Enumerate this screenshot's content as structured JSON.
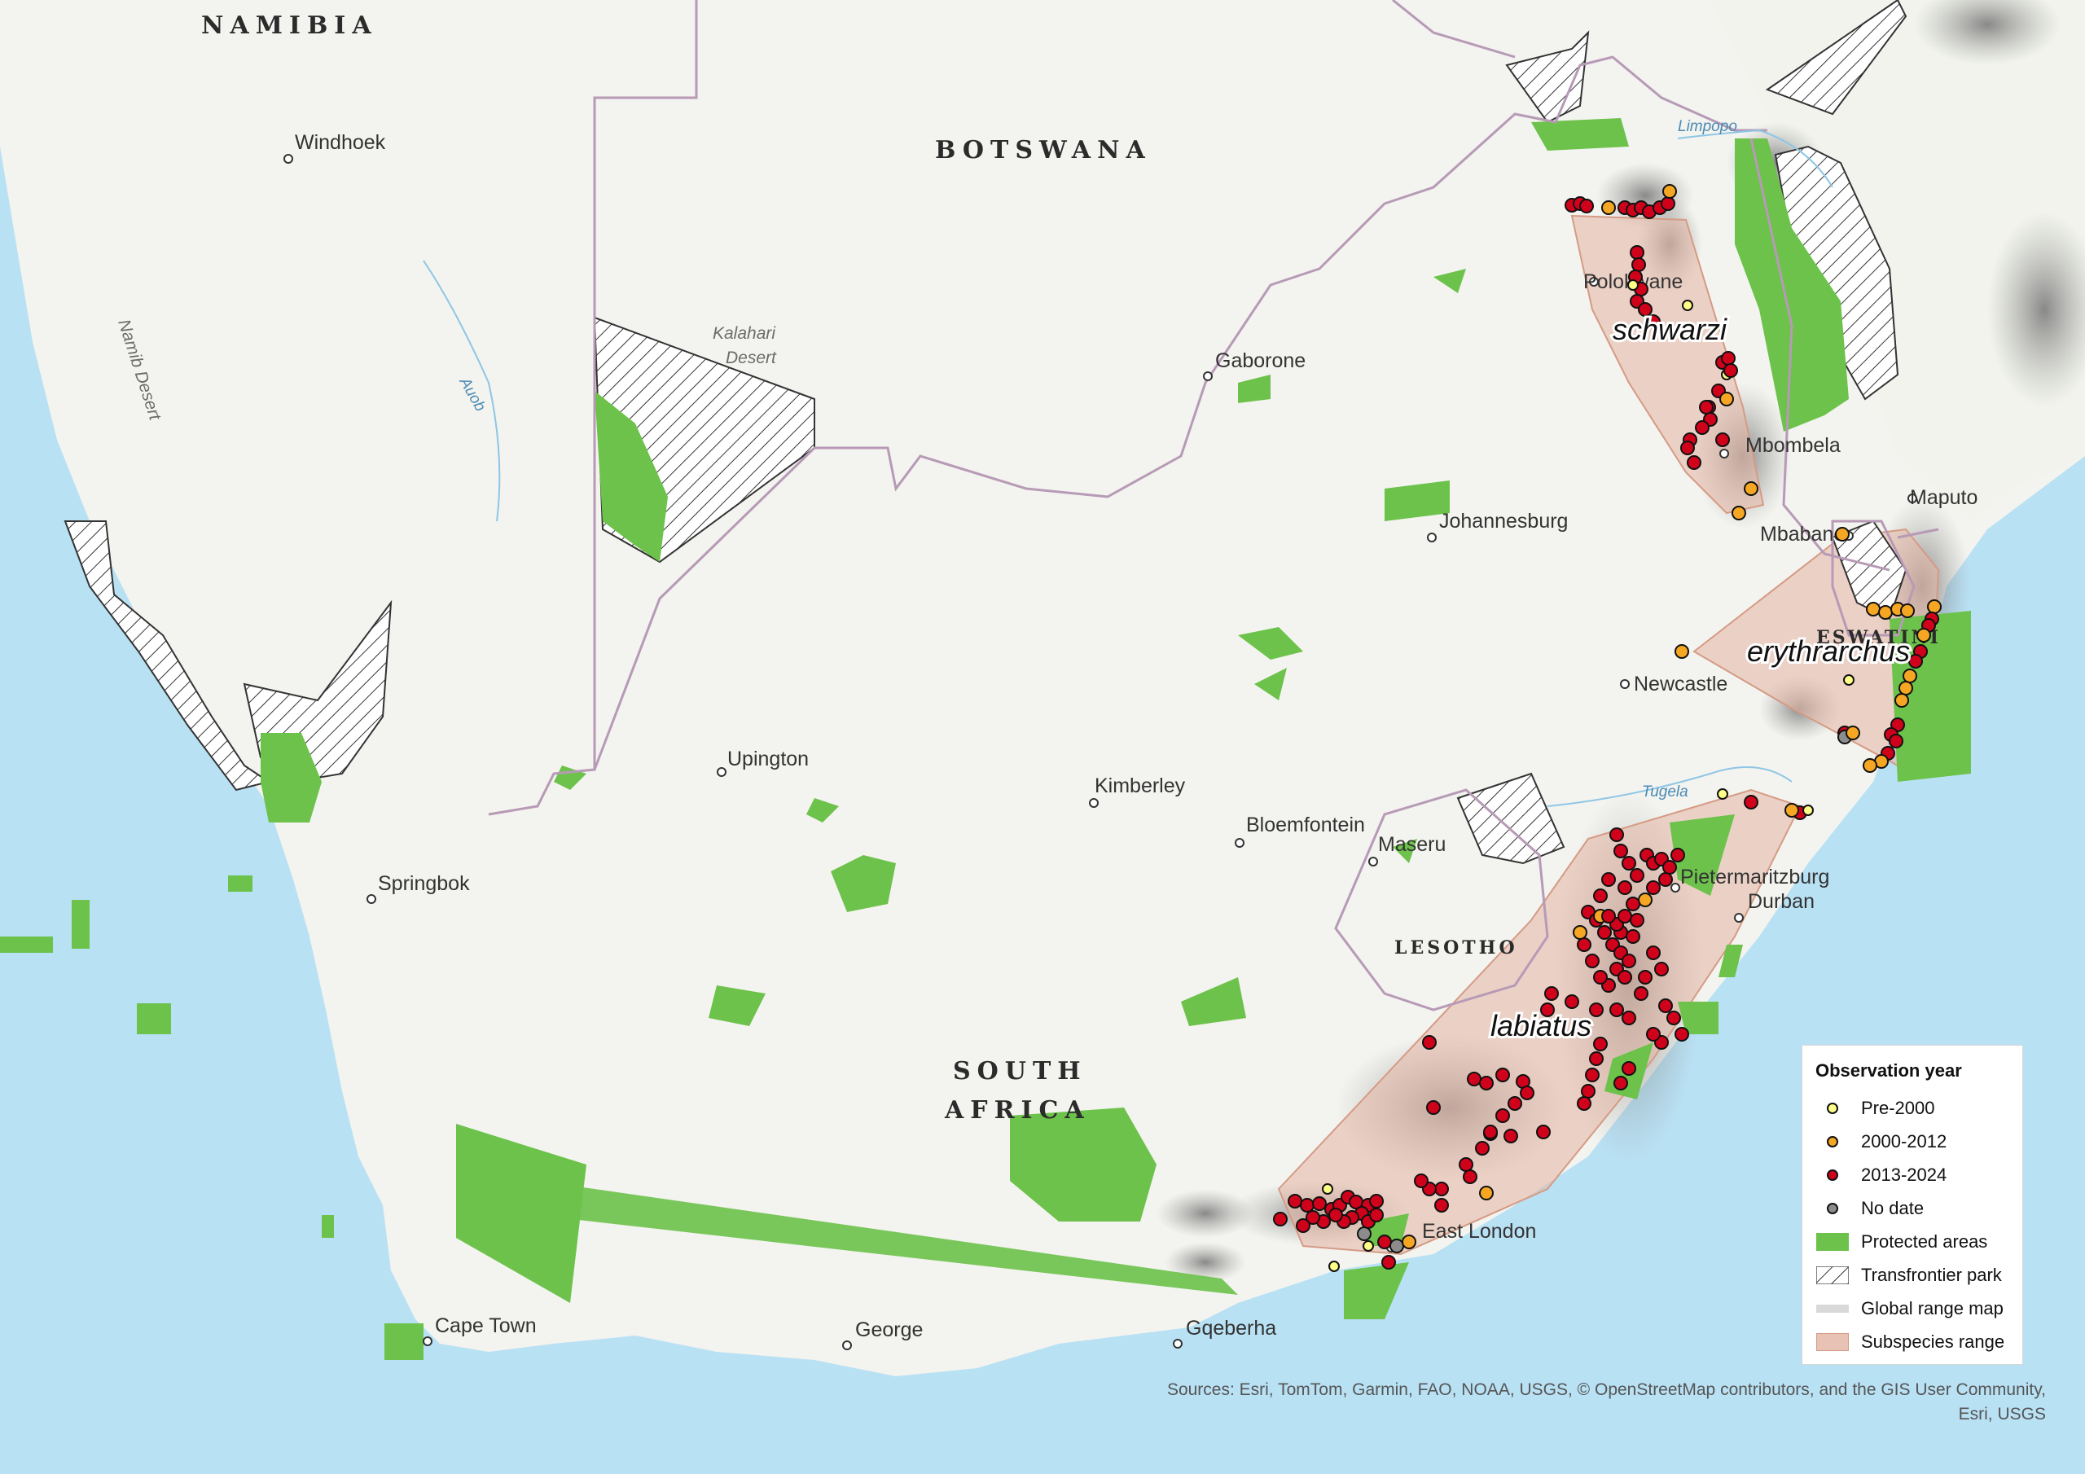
{
  "countries": [
    {
      "id": "namibia",
      "label": "NAMIBIA"
    },
    {
      "id": "botswana",
      "label": "BOTSWANA"
    },
    {
      "id": "south-africa-1",
      "label": "SOUTH"
    },
    {
      "id": "south-africa-2",
      "label": "AFRICA"
    },
    {
      "id": "lesotho",
      "label": "LESOTHO"
    },
    {
      "id": "eswatini",
      "label": "ESWATINI"
    }
  ],
  "cities": [
    {
      "id": "windhoek",
      "label": "Windhoek"
    },
    {
      "id": "gaborone",
      "label": "Gaborone"
    },
    {
      "id": "polokwane",
      "label": "Polokwane"
    },
    {
      "id": "mbombela",
      "label": "Mbombela"
    },
    {
      "id": "maputo",
      "label": "Maputo"
    },
    {
      "id": "mbabane",
      "label": "Mbabane"
    },
    {
      "id": "johannesburg",
      "label": "Johannesburg"
    },
    {
      "id": "newcastle",
      "label": "Newcastle"
    },
    {
      "id": "upington",
      "label": "Upington"
    },
    {
      "id": "kimberley",
      "label": "Kimberley"
    },
    {
      "id": "bloemfontein",
      "label": "Bloemfontein"
    },
    {
      "id": "maseru",
      "label": "Maseru"
    },
    {
      "id": "pietermaritzburg",
      "label": "Pietermaritzburg"
    },
    {
      "id": "durban",
      "label": "Durban"
    },
    {
      "id": "springbok",
      "label": "Springbok"
    },
    {
      "id": "east-london",
      "label": "East London"
    },
    {
      "id": "cape-town",
      "label": "Cape Town"
    },
    {
      "id": "george",
      "label": "George"
    },
    {
      "id": "gqeberha",
      "label": "Gqeberha"
    }
  ],
  "features": {
    "kalahari_1": "Kalahari",
    "kalahari_2": "Desert",
    "namib": "Namib Desert"
  },
  "rivers": {
    "auob": "Auob",
    "limpopo": "Limpopo",
    "tugela": "Tugela"
  },
  "subspecies": {
    "schwarzi": "schwarzi",
    "erythrarchus": "erythrarchus",
    "labiatus": "labiatus"
  },
  "legend": {
    "title": "Observation year",
    "items": [
      {
        "label": "Pre-2000",
        "kind": "dot",
        "color": "#ffff88"
      },
      {
        "label": "2000-2012",
        "kind": "dot",
        "color": "#f5a623"
      },
      {
        "label": "2013-2024",
        "kind": "dot",
        "color": "#d0021b"
      },
      {
        "label": "No date",
        "kind": "dot",
        "color": "#8c8c8c"
      },
      {
        "label": "Protected areas",
        "kind": "fill",
        "color": "#6cc24a"
      },
      {
        "label": "Transfrontier park",
        "kind": "hatch",
        "color": "#555555"
      },
      {
        "label": "Global range map",
        "kind": "fill",
        "color": "#d9d9d9"
      },
      {
        "label": "Subspecies range",
        "kind": "fill",
        "color": "#e8c2b4"
      }
    ]
  },
  "credits": {
    "line1": "Sources: Esri, TomTom, Garmin, FAO, NOAA, USGS, © OpenStreetMap contributors, and the GIS User Community,",
    "line2": "Esri, USGS"
  }
}
